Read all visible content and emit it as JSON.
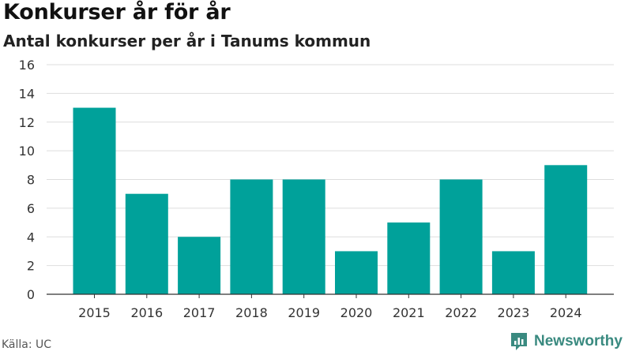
{
  "title": "Konkurser år för år",
  "subtitle": "Antal konkurser per år i Tanums kommun",
  "source": "Källa: UC",
  "brand": {
    "name": "Newsworthy",
    "icon": "newsworthy-logo-icon"
  },
  "colors": {
    "bar": "#00a19a",
    "grid": "#dddddd",
    "axis": "#333333",
    "brand": "#3a8a80"
  },
  "chart_data": {
    "type": "bar",
    "categories": [
      "2015",
      "2016",
      "2017",
      "2018",
      "2019",
      "2020",
      "2021",
      "2022",
      "2023",
      "2024"
    ],
    "values": [
      13,
      7,
      4,
      8,
      8,
      3,
      5,
      8,
      3,
      9
    ],
    "ylim": [
      0,
      16
    ],
    "yticks": [
      0,
      2,
      4,
      6,
      8,
      10,
      12,
      14,
      16
    ],
    "grid": true,
    "legend": "none"
  }
}
